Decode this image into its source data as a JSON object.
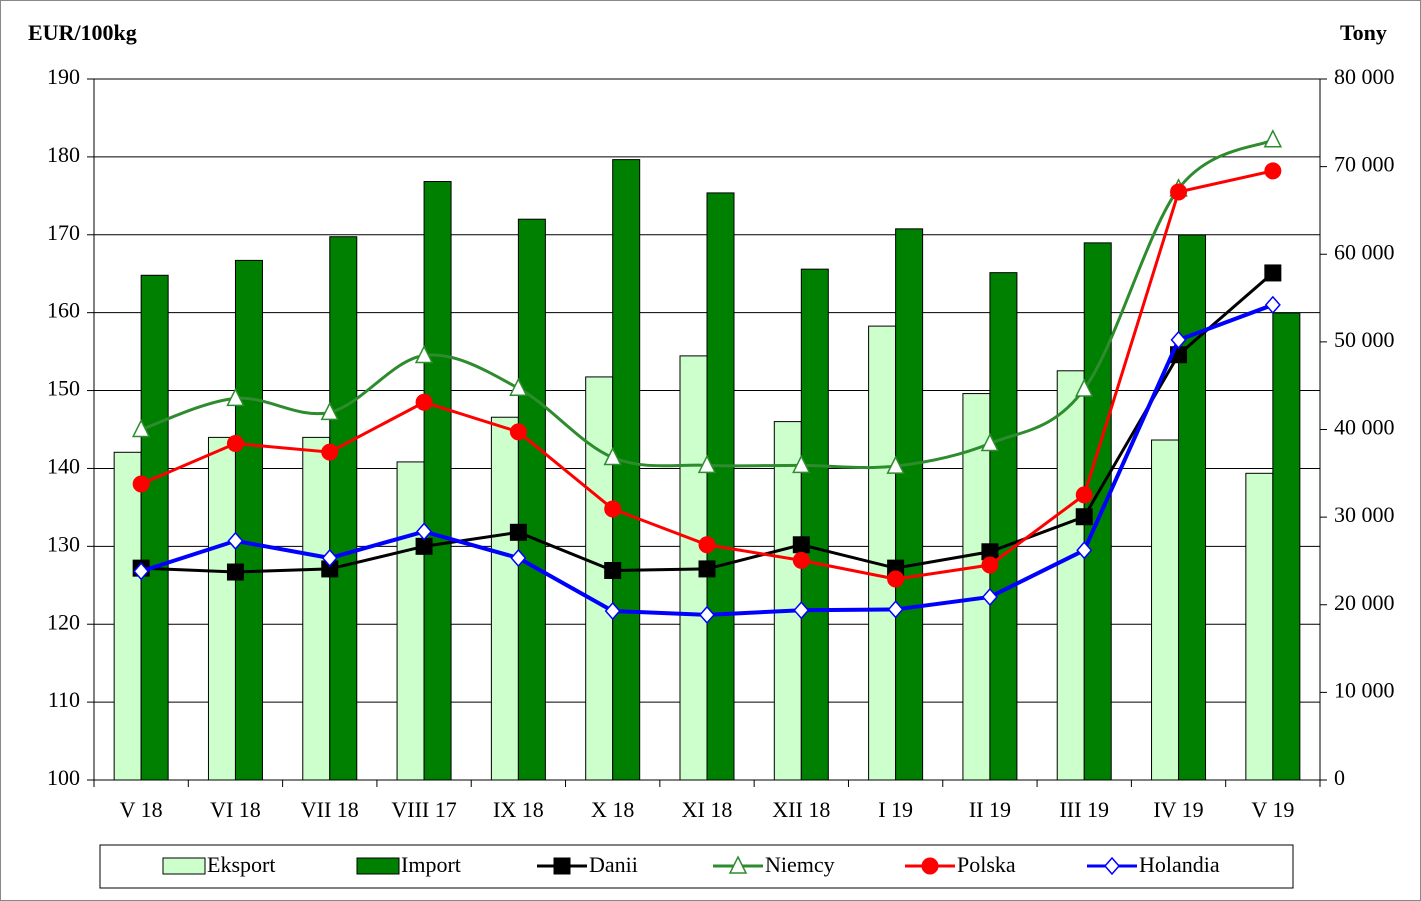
{
  "chart_data": {
    "type": "bar-line",
    "ylabel": "EUR/100kg",
    "y2label": "Tony",
    "categories": [
      "V 18",
      "VI 18",
      "VII 18",
      "VIII 17",
      "IX 18",
      "X 18",
      "XI 18",
      "XII 18",
      "I 19",
      "II 19",
      "III 19",
      "IV 19",
      "V 19"
    ],
    "ylim": [
      100,
      190
    ],
    "yticks": [
      100,
      110,
      120,
      130,
      140,
      150,
      160,
      170,
      180,
      190
    ],
    "y2lim": [
      0,
      80000
    ],
    "y2ticks": [
      0,
      {
        "value": 10000,
        "label": "10 000"
      },
      {
        "value": 20000,
        "label": "20 000"
      },
      {
        "value": 30000,
        "label": "30 000"
      },
      {
        "value": 40000,
        "label": "40 000"
      },
      {
        "value": 50000,
        "label": "50 000"
      },
      {
        "value": 60000,
        "label": "60 000"
      },
      {
        "value": 70000,
        "label": "70 000"
      },
      {
        "value": 80000,
        "label": "80 000"
      }
    ],
    "grid": true,
    "legend": "bottom",
    "series": [
      {
        "name": "Eksport",
        "type": "bar",
        "axis": "y2",
        "color": "#ccffcc",
        "values": [
          37400,
          39100,
          39100,
          36300,
          41400,
          46000,
          48400,
          40900,
          51800,
          44100,
          46700,
          38800,
          35000
        ]
      },
      {
        "name": "Import",
        "type": "bar",
        "axis": "y2",
        "color": "#008000",
        "values": [
          57600,
          59300,
          62000,
          68300,
          64000,
          70800,
          67000,
          58300,
          62900,
          57900,
          61300,
          62200,
          53300
        ]
      },
      {
        "name": "Danii",
        "type": "line",
        "color": "#000000",
        "marker": "square",
        "values": [
          127.2,
          126.7,
          127.1,
          130.0,
          131.8,
          126.9,
          127.1,
          130.2,
          127.2,
          129.3,
          133.8,
          154.6,
          165.1
        ]
      },
      {
        "name": "Niemcy",
        "type": "line",
        "color": "#2e8b2e",
        "marker": "triangle",
        "smooth": true,
        "values": [
          145.0,
          149.0,
          147.2,
          154.5,
          150.3,
          141.4,
          140.4,
          140.4,
          140.3,
          143.2,
          150.2,
          175.9,
          182.2
        ]
      },
      {
        "name": "Polska",
        "type": "line",
        "color": "#ff0000",
        "marker": "circle",
        "values": [
          138.0,
          143.2,
          142.1,
          148.5,
          144.7,
          134.8,
          130.2,
          128.2,
          125.8,
          127.6,
          136.6,
          175.5,
          178.2
        ]
      },
      {
        "name": "Holandia",
        "type": "line",
        "color": "#0000ff",
        "marker": "diamond",
        "values": [
          126.8,
          130.7,
          128.5,
          131.9,
          128.5,
          121.7,
          121.2,
          121.8,
          121.9,
          123.5,
          129.5,
          156.5,
          161.0
        ]
      }
    ]
  }
}
